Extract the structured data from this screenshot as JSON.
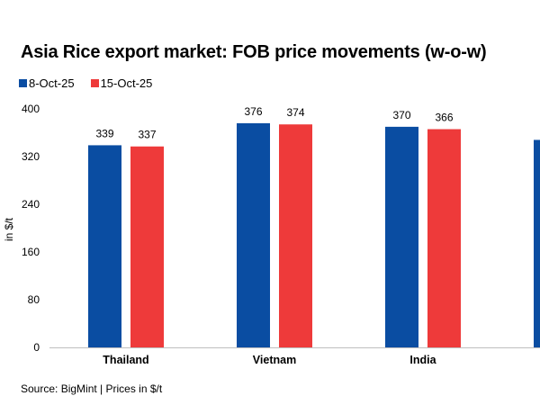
{
  "chart_data": {
    "type": "bar",
    "title": "Asia Rice export market:  FOB price movements (w-o-w)",
    "ylabel": "in $/t",
    "xlabel": "",
    "categories": [
      "Thailand",
      "Vietnam",
      "India",
      ""
    ],
    "series": [
      {
        "name": "8-Oct-25",
        "color": "#0A4DA2",
        "values": [
          339,
          376,
          370,
          348
        ]
      },
      {
        "name": "15-Oct-25",
        "color": "#EE3A3A",
        "values": [
          337,
          374,
          366,
          null
        ]
      }
    ],
    "data_labels": [
      [
        "339",
        "376",
        "370",
        ""
      ],
      [
        "337",
        "374",
        "366",
        ""
      ]
    ],
    "ylim": [
      0,
      400
    ],
    "yticks": [
      "0",
      "80",
      "160",
      "240",
      "320",
      "400"
    ],
    "ytick_values": [
      0,
      80,
      160,
      240,
      320,
      400
    ],
    "grid": false,
    "legend_position": "top-left",
    "axis_color": "#BFBFBF"
  },
  "source_text": "Source: BigMint | Prices in $/t"
}
